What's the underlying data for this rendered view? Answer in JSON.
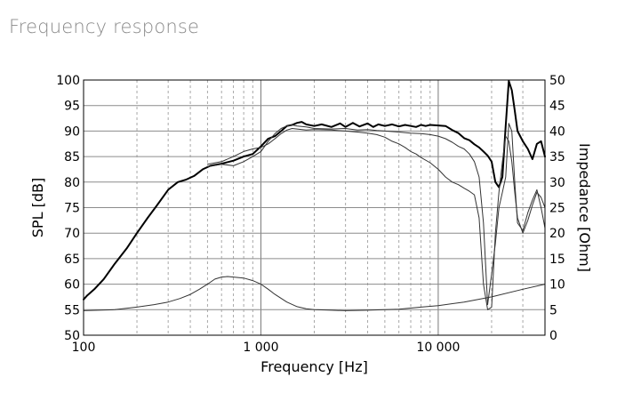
{
  "page": {
    "heading": "Frequency response"
  },
  "chart_data": {
    "type": "line",
    "title": "",
    "xlabel": "Frequency [Hz]",
    "ylabel": "SPL [dB]",
    "y2label": "Impedance [Ohm]",
    "xscale": "log",
    "xlim": [
      100,
      40000
    ],
    "ylim": [
      50,
      100
    ],
    "y2lim": [
      0,
      50
    ],
    "grid": true,
    "legend": "none",
    "x_tick_labels": [
      {
        "value": 100,
        "label": "100"
      },
      {
        "value": 1000,
        "label": "1 000"
      },
      {
        "value": 10000,
        "label": "10 000"
      }
    ],
    "y_tick_labels": [
      "50",
      "55",
      "60",
      "65",
      "70",
      "75",
      "80",
      "85",
      "90",
      "95",
      "100"
    ],
    "y2_tick_labels": [
      "0",
      "5",
      "10",
      "15",
      "20",
      "25",
      "30",
      "35",
      "40",
      "45",
      "50"
    ],
    "series": [
      {
        "axis": "left",
        "color": "#000000",
        "weight": "bold",
        "x": [
          100,
          105,
          115,
          130,
          150,
          175,
          200,
          230,
          260,
          300,
          340,
          380,
          420,
          470,
          520,
          600,
          700,
          800,
          900,
          1000,
          1100,
          1200,
          1300,
          1400,
          1500,
          1600,
          1700,
          1800,
          2000,
          2200,
          2500,
          2800,
          3000,
          3300,
          3600,
          4000,
          4300,
          4600,
          5000,
          5500,
          6000,
          6500,
          7000,
          7500,
          8000,
          8500,
          9000,
          10000,
          11000,
          12000,
          13000,
          14000,
          15000,
          16000,
          17000,
          18000,
          19000,
          20000,
          21000,
          22000,
          23000,
          24000,
          25000,
          26000,
          27000,
          28000,
          30000,
          32000,
          34000,
          36000,
          38000,
          40000
        ],
        "y": [
          57,
          57.8,
          59,
          61,
          64,
          67,
          70,
          73,
          75.5,
          78.5,
          80,
          80.5,
          81.2,
          82.5,
          83.2,
          83.6,
          84.2,
          85,
          85.5,
          87,
          88.5,
          89,
          90,
          91,
          91.2,
          91.6,
          91.8,
          91.3,
          91,
          91.3,
          90.8,
          91.5,
          90.8,
          91.6,
          90.9,
          91.5,
          90.8,
          91.3,
          91,
          91.3,
          90.9,
          91.2,
          91,
          90.8,
          91.2,
          91,
          91.2,
          91.1,
          91,
          90.2,
          89.6,
          88.6,
          88.2,
          87.4,
          86.8,
          86,
          85.2,
          84,
          80,
          79,
          81,
          91,
          99.8,
          98,
          94,
          90,
          88,
          86.5,
          84.5,
          87.5,
          88,
          85
        ]
      },
      {
        "axis": "left",
        "color": "#333333",
        "weight": "thin",
        "x": [
          500,
          600,
          700,
          800,
          900,
          1000,
          1100,
          1200,
          1300,
          1400,
          1500,
          1600,
          1800,
          2000,
          2500,
          3000,
          3500,
          4000,
          4500,
          5000,
          6000,
          7000,
          8000,
          9000,
          10000,
          11000,
          12000,
          13000,
          14000,
          15000,
          16000,
          17000,
          18000,
          19000,
          20000,
          21000,
          22000,
          23000,
          24000,
          25000,
          26000,
          27000,
          28000,
          30000,
          32000,
          34000,
          36000,
          38000,
          40000
        ],
        "y": [
          83,
          83.5,
          83.2,
          84,
          85,
          86,
          88,
          89.5,
          90.5,
          91,
          91.2,
          91,
          90.8,
          90.5,
          90.4,
          90.5,
          90.2,
          90.3,
          90.1,
          90,
          89.8,
          89.6,
          89.5,
          89.3,
          89,
          88.5,
          87.8,
          87,
          86.5,
          85.5,
          84,
          81,
          72,
          56,
          62,
          68,
          75,
          78,
          81,
          91.5,
          90,
          80,
          72,
          70.5,
          74,
          76.5,
          78.5,
          75,
          71
        ]
      },
      {
        "axis": "left",
        "color": "#333333",
        "weight": "thin",
        "x": [
          500,
          600,
          700,
          800,
          900,
          1000,
          1100,
          1200,
          1300,
          1400,
          1500,
          1600,
          1800,
          2000,
          2500,
          3000,
          3500,
          4000,
          4500,
          5000,
          5500,
          6000,
          6500,
          7000,
          7500,
          8000,
          9000,
          10000,
          11000,
          12000,
          13000,
          14000,
          15000,
          16000,
          17000,
          18000,
          19000,
          20000,
          21000,
          22000,
          23000,
          24000,
          25000,
          26000,
          27000,
          28000,
          30000,
          32000,
          34000,
          36000,
          38000,
          40000
        ],
        "y": [
          83.5,
          84,
          85,
          86,
          86.5,
          86.8,
          87.5,
          88.5,
          89.5,
          90.2,
          90.5,
          90.4,
          90.2,
          90.3,
          90.2,
          90,
          89.8,
          89.6,
          89.3,
          88.8,
          88,
          87.5,
          86.8,
          86,
          85.5,
          84.8,
          83.8,
          82.5,
          81,
          80,
          79.5,
          78.8,
          78.2,
          77.5,
          73,
          60,
          55,
          55.5,
          70,
          78,
          84,
          89,
          88,
          84,
          78,
          73,
          70,
          72.5,
          75.5,
          78,
          77,
          75
        ]
      },
      {
        "axis": "right",
        "color": "#333333",
        "weight": "thin",
        "x": [
          100,
          150,
          200,
          250,
          300,
          350,
          400,
          450,
          500,
          550,
          600,
          650,
          700,
          800,
          900,
          1000,
          1100,
          1200,
          1400,
          1600,
          1800,
          2000,
          2500,
          3000,
          4000,
          5000,
          6000,
          8000,
          10000,
          14000,
          20000,
          30000,
          40000
        ],
        "y": [
          4.8,
          5,
          5.5,
          6,
          6.5,
          7.2,
          8,
          9,
          10,
          11,
          11.4,
          11.5,
          11.4,
          11.2,
          10.7,
          10,
          9,
          8,
          6.5,
          5.6,
          5.2,
          5,
          4.9,
          4.8,
          4.9,
          5,
          5.1,
          5.5,
          5.8,
          6.5,
          7.5,
          9,
          10
        ]
      }
    ]
  }
}
